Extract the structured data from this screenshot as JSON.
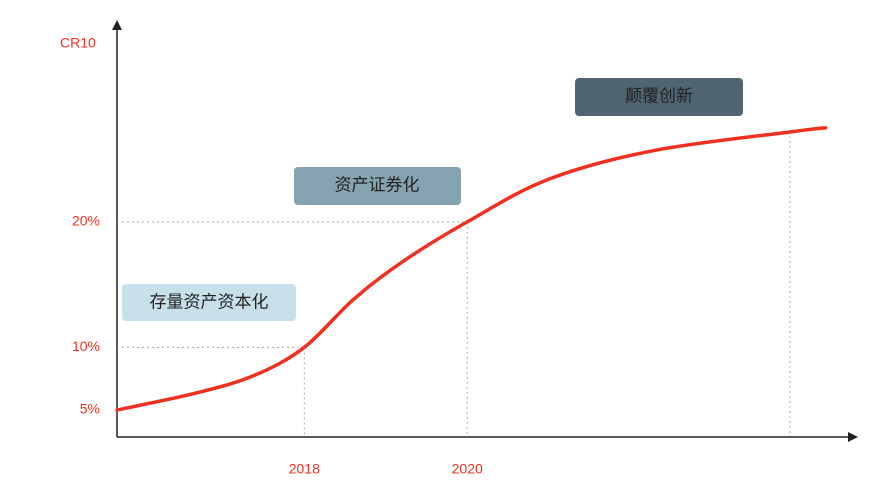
{
  "chart_data": {
    "type": "line",
    "y_axis_label": "CR10",
    "x": [
      2015.7,
      2016.7,
      2017.4,
      2018,
      2018.6,
      2019.2,
      2020,
      2021,
      2022.3,
      2024,
      2024.4
    ],
    "series": [
      {
        "color": "#f2301f",
        "values": [
          5,
          6.4,
          7.8,
          10,
          13.8,
          16.8,
          20,
          23.4,
          25.7,
          27.2,
          27.5
        ]
      }
    ],
    "xlim": [
      2015.7,
      2024.7
    ],
    "ylim": [
      2.85,
      35.3
    ],
    "xticks": [
      2018,
      2020
    ],
    "yticks": [
      {
        "value": 5,
        "label": "5%"
      },
      {
        "value": 10,
        "label": "10%"
      },
      {
        "value": 20,
        "label": "20%"
      }
    ],
    "annotations": [
      "存量资产资本化",
      "资产证券化",
      "颠覆创新"
    ]
  }
}
